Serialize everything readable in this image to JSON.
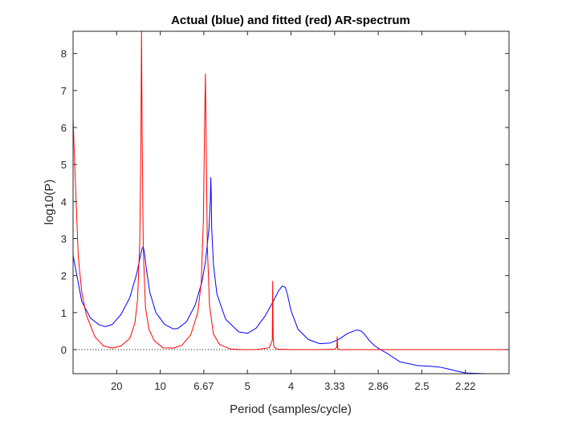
{
  "chart_data": {
    "type": "line",
    "title": "Actual (blue) and fitted (red) AR-spectrum",
    "xlabel": "Period (samples/cycle)",
    "ylabel": "log10(P)",
    "x_axis_note": "Frequency axis from 0 to 0.5 cycles/sample; tick labels show period = 1/frequency",
    "xlim": [
      0,
      0.5
    ],
    "ylim": [
      -0.65,
      8.6
    ],
    "grid": false,
    "legend": "none",
    "x_ticks": [
      {
        "value": 0.05,
        "label": "20"
      },
      {
        "value": 0.1,
        "label": "10"
      },
      {
        "value": 0.15,
        "label": "6.67"
      },
      {
        "value": 0.2,
        "label": "5"
      },
      {
        "value": 0.25,
        "label": "4"
      },
      {
        "value": 0.3,
        "label": "3.33"
      },
      {
        "value": 0.35,
        "label": "2.86"
      },
      {
        "value": 0.4,
        "label": "2.5"
      },
      {
        "value": 0.45,
        "label": "2.22"
      }
    ],
    "y_ticks": [
      0,
      1,
      2,
      3,
      4,
      5,
      6,
      7,
      8
    ],
    "reference_line": {
      "y": 0,
      "style": "dotted",
      "color": "#000000"
    },
    "series": [
      {
        "color": "#0000ff",
        "x": [
          0.0,
          0.01,
          0.02,
          0.03,
          0.037,
          0.045,
          0.055,
          0.065,
          0.073,
          0.077,
          0.079,
          0.0805,
          0.082,
          0.084,
          0.088,
          0.095,
          0.105,
          0.115,
          0.12,
          0.13,
          0.14,
          0.148,
          0.152,
          0.156,
          0.1575,
          0.158,
          0.1585,
          0.159,
          0.161,
          0.165,
          0.175,
          0.19,
          0.2,
          0.21,
          0.22,
          0.23,
          0.236,
          0.24,
          0.2435,
          0.246,
          0.25,
          0.258,
          0.27,
          0.283,
          0.295,
          0.305,
          0.315,
          0.325,
          0.33,
          0.334,
          0.34,
          0.346,
          0.352,
          0.36,
          0.375,
          0.395,
          0.41,
          0.42,
          0.43,
          0.44,
          0.45,
          0.46,
          0.475,
          0.49,
          0.5
        ],
        "y": [
          2.55,
          1.3,
          0.85,
          0.67,
          0.62,
          0.68,
          0.95,
          1.4,
          2.05,
          2.5,
          2.72,
          2.78,
          2.6,
          2.2,
          1.55,
          1.0,
          0.68,
          0.56,
          0.57,
          0.75,
          1.2,
          1.85,
          2.4,
          3.3,
          4.05,
          4.65,
          4.2,
          3.3,
          2.3,
          1.5,
          0.82,
          0.48,
          0.44,
          0.58,
          0.9,
          1.32,
          1.6,
          1.72,
          1.68,
          1.48,
          1.05,
          0.55,
          0.27,
          0.16,
          0.18,
          0.28,
          0.44,
          0.53,
          0.51,
          0.42,
          0.24,
          0.1,
          0.01,
          -0.1,
          -0.33,
          -0.43,
          -0.45,
          -0.47,
          -0.52,
          -0.58,
          -0.63,
          -0.64,
          -0.65,
          -0.65,
          -0.65
        ]
      },
      {
        "color": "#ff0000",
        "x": [
          0.0,
          0.003,
          0.006,
          0.01,
          0.015,
          0.025,
          0.035,
          0.045,
          0.055,
          0.065,
          0.071,
          0.074,
          0.0765,
          0.0778,
          0.0785,
          0.0792,
          0.0805,
          0.083,
          0.087,
          0.093,
          0.103,
          0.115,
          0.125,
          0.135,
          0.143,
          0.147,
          0.1495,
          0.151,
          0.1518,
          0.1525,
          0.154,
          0.1565,
          0.161,
          0.168,
          0.18,
          0.195,
          0.21,
          0.225,
          0.2285,
          0.229,
          0.2295,
          0.2305,
          0.235,
          0.25,
          0.28,
          0.3,
          0.3025,
          0.303,
          0.3035,
          0.305,
          0.35,
          0.4,
          0.45,
          0.5
        ],
        "y": [
          6.25,
          4.3,
          2.5,
          1.55,
          0.95,
          0.35,
          0.1,
          0.04,
          0.1,
          0.3,
          0.72,
          1.35,
          2.9,
          5.5,
          8.6,
          6.0,
          2.75,
          1.15,
          0.55,
          0.25,
          0.05,
          0.04,
          0.12,
          0.4,
          1.0,
          1.8,
          3.5,
          6.3,
          7.45,
          6.0,
          2.8,
          1.2,
          0.42,
          0.14,
          0.02,
          0.0,
          0.0,
          0.05,
          0.25,
          1.85,
          0.3,
          0.06,
          0.01,
          0.0,
          0.0,
          0.01,
          0.06,
          0.35,
          0.05,
          0.0,
          0.0,
          0.0,
          0.0,
          0.0
        ]
      }
    ]
  }
}
